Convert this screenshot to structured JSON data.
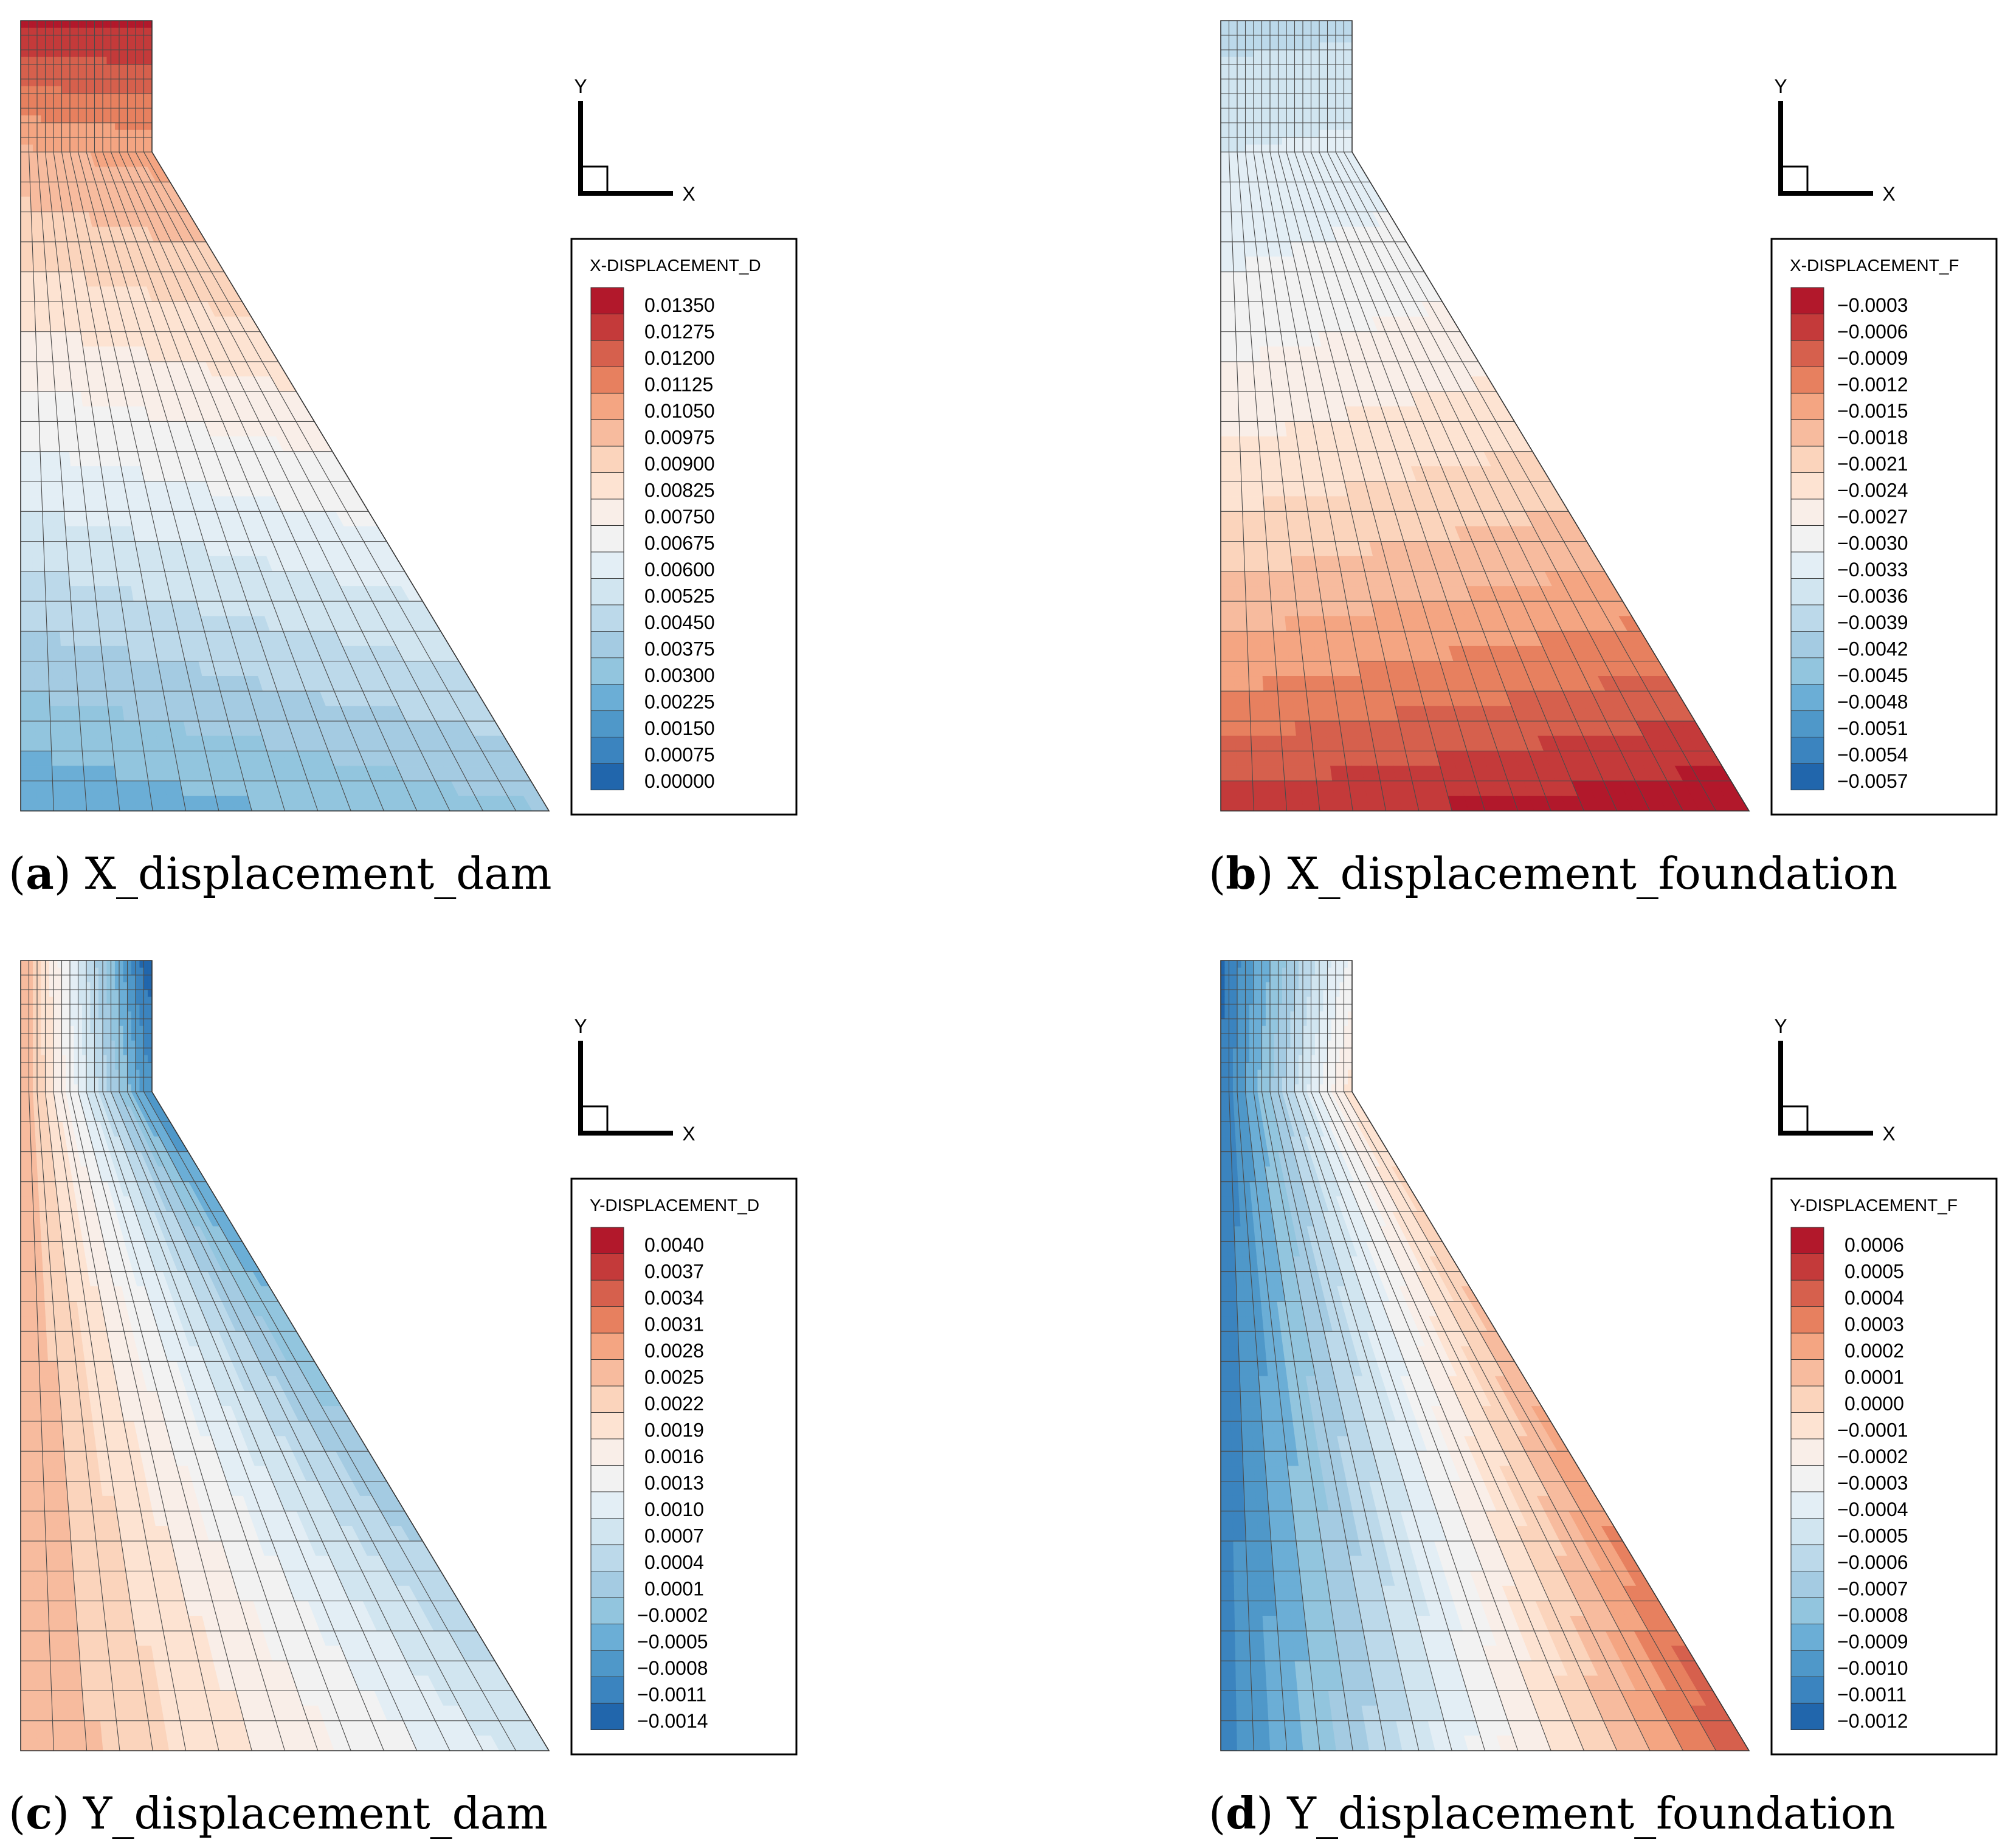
{
  "panels": [
    {
      "letter": "a",
      "caption": "X_displacement_dam",
      "legend_title": "X-DISPLACEMENT_D",
      "legend_values": [
        "0.01350",
        "0.01275",
        "0.01200",
        "0.01125",
        "0.01050",
        "0.00975",
        "0.00900",
        "0.00825",
        "0.00750",
        "0.00675",
        "0.00600",
        "0.00525",
        "0.00450",
        "0.00375",
        "0.00300",
        "0.00225",
        "0.00150",
        "0.00075",
        "0.00000"
      ],
      "field": "x_dam",
      "axis_x": "X",
      "axis_y": "Y"
    },
    {
      "letter": "b",
      "caption": "X_displacement_foundation",
      "legend_title": "X-DISPLACEMENT_F",
      "legend_values": [
        "−0.0003",
        "−0.0006",
        "−0.0009",
        "−0.0012",
        "−0.0015",
        "−0.0018",
        "−0.0021",
        "−0.0024",
        "−0.0027",
        "−0.0030",
        "−0.0033",
        "−0.0036",
        "−0.0039",
        "−0.0042",
        "−0.0045",
        "−0.0048",
        "−0.0051",
        "−0.0054",
        "−0.0057"
      ],
      "field": "x_found",
      "axis_x": "X",
      "axis_y": "Y"
    },
    {
      "letter": "c",
      "caption": "Y_displacement_dam",
      "legend_title": "Y-DISPLACEMENT_D",
      "legend_values": [
        "0.0040",
        "0.0037",
        "0.0034",
        "0.0031",
        "0.0028",
        "0.0025",
        "0.0022",
        "0.0019",
        "0.0016",
        "0.0013",
        "0.0010",
        "0.0007",
        "0.0004",
        "0.0001",
        "−0.0002",
        "−0.0005",
        "−0.0008",
        "−0.0011",
        "−0.0014"
      ],
      "field": "y_dam",
      "axis_x": "X",
      "axis_y": "Y"
    },
    {
      "letter": "d",
      "caption": "Y_displacement_foundation",
      "legend_title": "Y-DISPLACEMENT_F",
      "legend_values": [
        "0.0006",
        "0.0005",
        "0.0004",
        "0.0003",
        "0.0002",
        "0.0001",
        "0.0000",
        "−0.0001",
        "−0.0002",
        "−0.0003",
        "−0.0004",
        "−0.0005",
        "−0.0006",
        "−0.0007",
        "−0.0008",
        "−0.0009",
        "−0.0010",
        "−0.0011",
        "−0.0012"
      ],
      "field": "y_found",
      "axis_x": "X",
      "axis_y": "Y"
    }
  ],
  "colormap": [
    "#b2182b",
    "#c43a3a",
    "#d6604d",
    "#e7805f",
    "#f4a582",
    "#f7bb9e",
    "#fbd4bc",
    "#fde3d2",
    "#f9eee8",
    "#f2f2f2",
    "#e3eef5",
    "#d1e5f0",
    "#bcd9ea",
    "#a4cbe2",
    "#92c5de",
    "#6baed6",
    "#4f98c9",
    "#3b84bf",
    "#2166ac"
  ],
  "mesh_color": "#4a4a4a"
}
